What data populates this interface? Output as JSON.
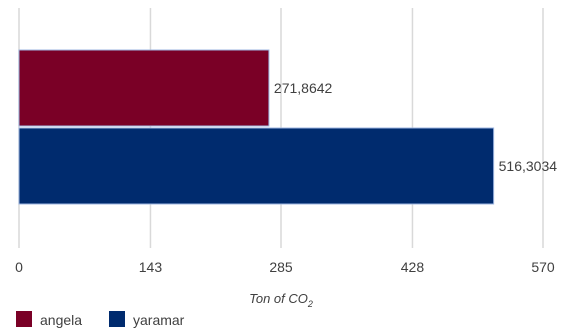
{
  "chart_data": {
    "type": "bar",
    "orientation": "horizontal",
    "categories": [
      "angela",
      "yaramar"
    ],
    "series": [
      {
        "name": "angela",
        "value": 271.8642,
        "label": "271,8642",
        "color": "#7a0026"
      },
      {
        "name": "yaramar",
        "value": 516.3034,
        "label": "516,3034",
        "color": "#002b6e"
      }
    ],
    "xlabel": {
      "text": "Ton of CO",
      "subscript": "2"
    },
    "xlim": [
      0,
      570
    ],
    "xticks": [
      0,
      143,
      285,
      428,
      570
    ],
    "xtick_labels": [
      "0",
      "143",
      "285",
      "428",
      "570"
    ],
    "grid": "vertical",
    "legend_position": "bottom-left"
  }
}
